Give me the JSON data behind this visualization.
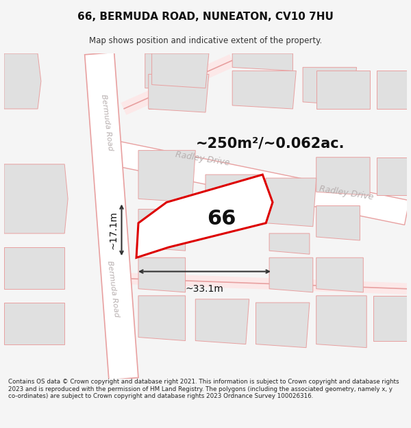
{
  "title": "66, BERMUDA ROAD, NUNEATON, CV10 7HU",
  "subtitle": "Map shows position and indicative extent of the property.",
  "area_text": "~250m²/~0.062ac.",
  "number_label": "66",
  "dim_width": "~33.1m",
  "dim_height": "~17.1m",
  "footer_text": "Contains OS data © Crown copyright and database right 2021. This information is subject to Crown copyright and database rights 2023 and is reproduced with the permission of HM Land Registry. The polygons (including the associated geometry, namely x, y co-ordinates) are subject to Crown copyright and database rights 2023 Ordnance Survey 100026316.",
  "bg_color": "#f5f5f5",
  "map_bg": "#ffffff",
  "road_color": "#e8a0a0",
  "road_fill": "#fce8e8",
  "plot_outline_color": "#dd0000",
  "building_fill": "#e0e0e0",
  "building_outline": "#e8a0a0",
  "road_label_color": "#b8b0b0",
  "dim_line_color": "#333333",
  "road_name_1": "Bermuda Road",
  "road_name_2": "Radley Drive",
  "title_fontsize": 11,
  "subtitle_fontsize": 8.5,
  "footer_fontsize": 6.3
}
